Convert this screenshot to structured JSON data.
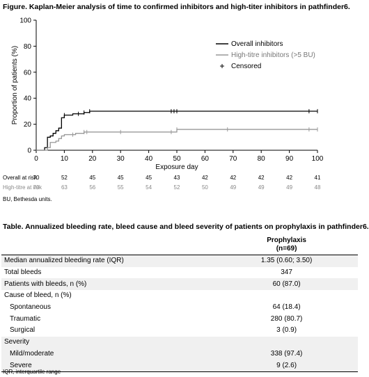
{
  "figure": {
    "title": "Figure. Kaplan-Meier analysis of time to confirmed inhibitors and high-titer inhibitors in pathfinder6."
  },
  "chart_data": {
    "type": "line",
    "xlabel": "Exposure day",
    "ylabel": "Proportion of patients (%)",
    "xlim": [
      0,
      100
    ],
    "ylim": [
      0,
      100
    ],
    "x_ticks": [
      0,
      10,
      20,
      30,
      40,
      50,
      60,
      70,
      80,
      90,
      100
    ],
    "y_ticks": [
      0,
      20,
      40,
      60,
      80,
      100
    ],
    "legend_position": "top-right",
    "legend": [
      "Overall inhibitors",
      "High-titre inhibitors (>5 BU)",
      "Censored"
    ],
    "series": [
      {
        "name": "Overall inhibitors",
        "color": "#000000",
        "steps": [
          [
            0,
            0
          ],
          [
            3,
            2
          ],
          [
            4,
            10
          ],
          [
            5,
            11
          ],
          [
            6,
            13
          ],
          [
            7,
            15
          ],
          [
            8,
            17
          ],
          [
            9,
            25
          ],
          [
            10,
            27
          ],
          [
            13,
            28
          ],
          [
            17,
            29
          ],
          [
            19,
            30
          ],
          [
            100,
            30
          ]
        ],
        "censored": [
          10,
          15,
          17,
          19,
          48,
          49,
          50,
          97,
          100
        ]
      },
      {
        "name": "High-titre inhibitors (>5 BU)",
        "color": "#999999",
        "steps": [
          [
            0,
            0
          ],
          [
            4,
            2
          ],
          [
            5,
            6
          ],
          [
            7,
            7
          ],
          [
            8,
            9
          ],
          [
            9,
            11
          ],
          [
            10,
            12
          ],
          [
            14,
            13
          ],
          [
            17,
            14
          ],
          [
            50,
            16
          ],
          [
            100,
            16
          ]
        ],
        "censored": [
          13,
          17,
          18,
          30,
          48,
          50,
          68,
          97,
          100
        ]
      }
    ]
  },
  "risk_table": {
    "x": [
      0,
      10,
      20,
      30,
      40,
      50,
      60,
      70,
      80,
      90,
      100
    ],
    "rows": [
      {
        "label": "Overall at risk",
        "values": [
          "70",
          "52",
          "45",
          "45",
          "45",
          "43",
          "42",
          "42",
          "42",
          "42",
          "41"
        ]
      },
      {
        "label": "High-titre at risk",
        "values": [
          "70",
          "63",
          "56",
          "55",
          "54",
          "52",
          "50",
          "49",
          "49",
          "49",
          "48"
        ]
      }
    ]
  },
  "figure_note": "BU, Bethesda units.",
  "table": {
    "title": "Table. Annualized bleeding rate, bleed cause and bleed severity of patients on prophylaxis in pathfinder6.",
    "header_line1": "Prophylaxis",
    "header_line2": "(n=69)",
    "rows": [
      {
        "label": "Median annualized bleeding rate (IQR)",
        "value": "1.35 (0.60; 3.50)",
        "shade": true,
        "indent": false
      },
      {
        "label": "Total bleeds",
        "value": "347",
        "shade": false,
        "indent": false
      },
      {
        "label": "Patients with bleeds, n (%)",
        "value": "60 (87.0)",
        "shade": true,
        "indent": false
      },
      {
        "label": "Cause of bleed, n (%)",
        "value": "",
        "shade": false,
        "indent": false
      },
      {
        "label": "Spontaneous",
        "value": "64 (18.4)",
        "shade": false,
        "indent": true
      },
      {
        "label": "Traumatic",
        "value": "280 (80.7)",
        "shade": false,
        "indent": true
      },
      {
        "label": "Surgical",
        "value": "3 (0.9)",
        "shade": false,
        "indent": true
      },
      {
        "label": "Severity",
        "value": "",
        "shade": true,
        "indent": false
      },
      {
        "label": "Mild/moderate",
        "value": "338 (97.4)",
        "shade": true,
        "indent": true
      },
      {
        "label": "Severe",
        "value": "9 (2.6)",
        "shade": true,
        "indent": true
      }
    ],
    "footnote": "IQR, interquartile range"
  }
}
